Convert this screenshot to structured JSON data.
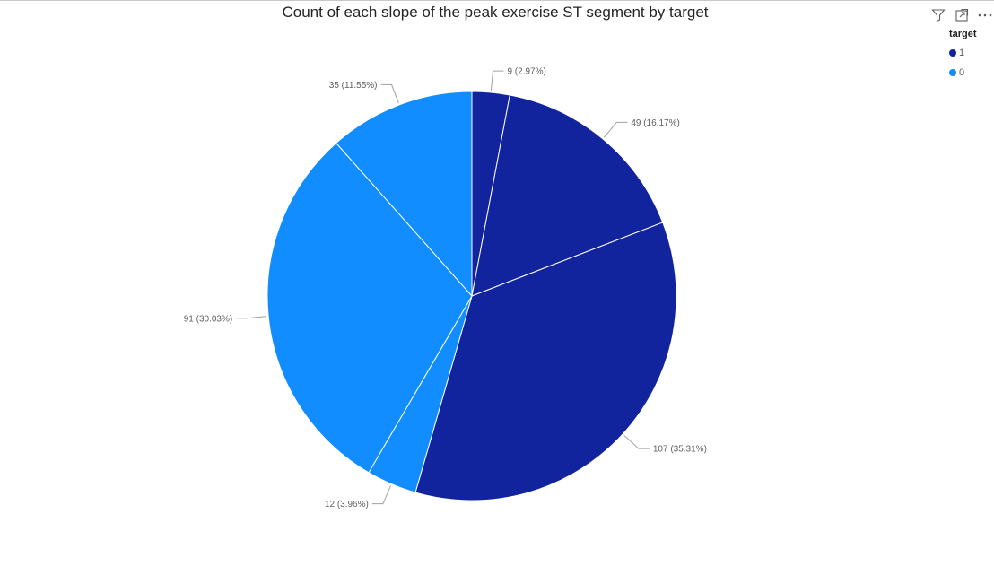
{
  "title": "Count of each slope of the peak exercise ST segment by target",
  "toolbar": {
    "filter_icon": "filter-icon",
    "focus_icon": "focus-mode-icon",
    "more_icon": "more-options-icon"
  },
  "legend": {
    "title": "target",
    "items": [
      {
        "label": "1",
        "color": "#12239E"
      },
      {
        "label": "0",
        "color": "#118DFF"
      }
    ]
  },
  "chart_data": {
    "type": "pie",
    "title": "Count of each slope of the peak exercise ST segment by target",
    "legend_title": "target",
    "legend_position": "top-right",
    "slices": [
      {
        "target": "1",
        "value": 9,
        "label": "9 (2.97%)",
        "color": "#12239E"
      },
      {
        "target": "1",
        "value": 49,
        "label": "49 (16.17%)",
        "color": "#12239E"
      },
      {
        "target": "1",
        "value": 107,
        "label": "107 (35.31%)",
        "color": "#12239E"
      },
      {
        "target": "0",
        "value": 12,
        "label": "12 (3.96%)",
        "color": "#118DFF"
      },
      {
        "target": "0",
        "value": 91,
        "label": "91 (30.03%)",
        "color": "#118DFF"
      },
      {
        "target": "0",
        "value": 35,
        "label": "35 (11.55%)",
        "color": "#118DFF"
      }
    ]
  }
}
